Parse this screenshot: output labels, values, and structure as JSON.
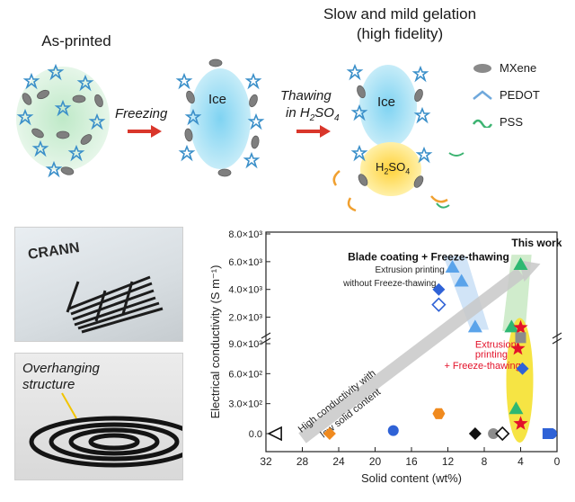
{
  "schematic": {
    "stage_as_printed": "As-printed",
    "stage_gelation_line1": "Slow and mild gelation",
    "stage_gelation_line2": "(high fidelity)",
    "arrow_freezing": "Freezing",
    "arrow_thawing_line1": "Thawing",
    "arrow_thawing_line2_prefix": "in H",
    "arrow_thawing_sub1": "2",
    "arrow_thawing_mid": "SO",
    "arrow_thawing_sub2": "4",
    "ice_label": "Ice",
    "ice_label_2": "Ice",
    "acid_label_prefix": "H",
    "acid_sub1": "2",
    "acid_mid": "SO",
    "acid_sub2": "4",
    "legend": [
      {
        "label": "MXene",
        "icon": "mxene-flake",
        "color": "#8a8a8a"
      },
      {
        "label": "PEDOT",
        "icon": "pedot-chain",
        "color": "#6fa8dc"
      },
      {
        "label": "PSS",
        "icon": "pss-chain",
        "color": "#3cb371"
      }
    ]
  },
  "photos": {
    "printed_text": "CRANN",
    "overhang_line1": "Overhanging",
    "overhang_line2": "structure"
  },
  "chart_data": {
    "type": "scatter",
    "xlabel": "Solid content (wt%)",
    "ylabel": "Electrical conductivity (S m⁻¹)",
    "x_reversed": true,
    "xlim": [
      32,
      0
    ],
    "x_ticks": [
      "32",
      "28",
      "24",
      "20",
      "16",
      "12",
      "8",
      "4",
      "0"
    ],
    "y_axis_broken": true,
    "y_ticks_upper": [
      "2.0×10³",
      "4.0×10³",
      "6.0×10³",
      "8.0×10³"
    ],
    "y_ticks_lower": [
      "0.0",
      "3.0×10²",
      "6.0×10²",
      "9.0×10²"
    ],
    "annotations": {
      "blade": "Blade coating + Freeze-thawing",
      "this_work": "This work",
      "extrusion_no_ft_line1": "Extrusion printing",
      "extrusion_no_ft_line2": "without Freeze-thawing",
      "trend_line1": "High conductivity with",
      "trend_line2": "low solid content",
      "extrusion_ft_line1": "Extrusion",
      "extrusion_ft_line2": "printing",
      "extrusion_ft_line3": "+ Freeze-thawing"
    },
    "colors": {
      "blue": "#2f62d6",
      "light_blue": "#5aa3ea",
      "green": "#2eb872",
      "red": "#e3122a",
      "orange": "#f08a1e",
      "grey": "#8c8c8c",
      "black": "#111111",
      "shade_blue": "#cfe3f7",
      "shade_green": "#cdebc9",
      "shade_yellow": "#f5e33a",
      "trend_arrow": "#c8c8c8"
    },
    "points": [
      {
        "x": 31,
        "y": 0,
        "marker": "triangle-left-open",
        "color": "black"
      },
      {
        "x": 25,
        "y": 0,
        "marker": "diamond",
        "color": "orange"
      },
      {
        "x": 18,
        "y": 30,
        "marker": "circle",
        "color": "blue"
      },
      {
        "x": 13,
        "y": 200,
        "marker": "hexagon",
        "color": "orange"
      },
      {
        "x": 9,
        "y": 0,
        "marker": "diamond",
        "color": "black"
      },
      {
        "x": 7,
        "y": 0,
        "marker": "circle",
        "color": "grey"
      },
      {
        "x": 6,
        "y": 0,
        "marker": "diamond-open",
        "color": "black"
      },
      {
        "x": 1,
        "y": 0,
        "marker": "square",
        "color": "blue"
      },
      {
        "x": 0.6,
        "y": 0,
        "marker": "circle",
        "color": "blue"
      },
      {
        "x": 13,
        "y": 4000,
        "marker": "diamond",
        "color": "blue"
      },
      {
        "x": 13,
        "y": 2900,
        "marker": "diamond-open",
        "color": "blue"
      },
      {
        "x": 11.5,
        "y": 5600,
        "marker": "triangle",
        "color": "light_blue"
      },
      {
        "x": 10.5,
        "y": 4600,
        "marker": "triangle",
        "color": "light_blue"
      },
      {
        "x": 9,
        "y": 1300,
        "marker": "triangle",
        "color": "light_blue"
      },
      {
        "x": 4,
        "y": 5800,
        "marker": "triangle",
        "color": "green"
      },
      {
        "x": 5,
        "y": 1300,
        "marker": "triangle",
        "color": "green"
      },
      {
        "x": 4.5,
        "y": 250,
        "marker": "triangle",
        "color": "green"
      },
      {
        "x": 4,
        "y": 1250,
        "marker": "star",
        "color": "red"
      },
      {
        "x": 4.3,
        "y": 850,
        "marker": "star",
        "color": "red"
      },
      {
        "x": 4,
        "y": 100,
        "marker": "star",
        "color": "red"
      },
      {
        "x": 4,
        "y": 960,
        "marker": "square",
        "color": "grey"
      },
      {
        "x": 3.8,
        "y": 650,
        "marker": "diamond",
        "color": "blue"
      }
    ]
  }
}
